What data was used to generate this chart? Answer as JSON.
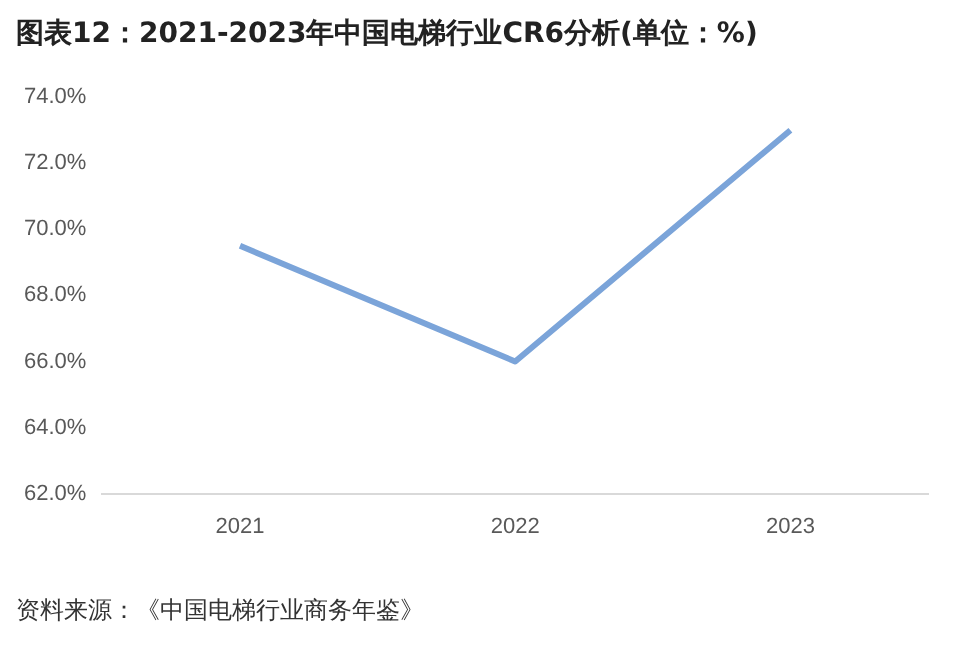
{
  "chart_data": {
    "type": "line",
    "title": "图表12：2021-2023年中国电梯行业CR6分析(单位：%)",
    "categories": [
      "2021",
      "2022",
      "2023"
    ],
    "series": [
      {
        "color": "#7ba4d9",
        "values": [
          69.5,
          66.0,
          73.0
        ]
      }
    ],
    "ylim": [
      62,
      74
    ],
    "yticks": [
      {
        "value": 62,
        "label": "62.0%"
      },
      {
        "value": 64,
        "label": "64.0%"
      },
      {
        "value": 66,
        "label": "66.0%"
      },
      {
        "value": 68,
        "label": "68.0%"
      },
      {
        "value": 70,
        "label": "70.0%"
      },
      {
        "value": 72,
        "label": "72.0%"
      },
      {
        "value": 74,
        "label": "74.0%"
      }
    ],
    "grid": false,
    "legend": false,
    "marker": "none",
    "line_style": "solid",
    "annotations": [
      "资料来源：《中国电梯行业商务年鉴》"
    ]
  }
}
